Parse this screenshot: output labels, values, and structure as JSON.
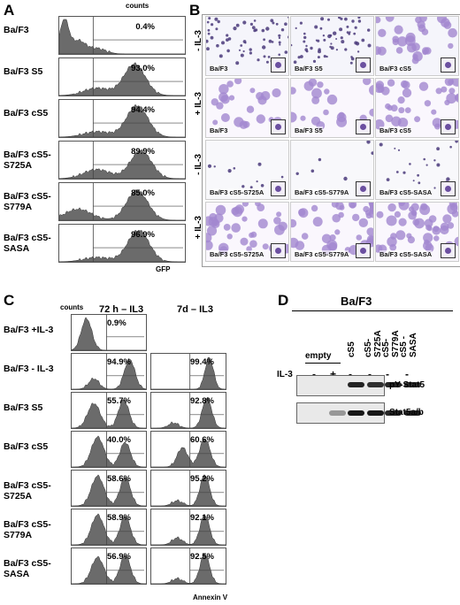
{
  "panels": {
    "A": "A",
    "B": "B",
    "C": "C",
    "D": "D"
  },
  "panel_a": {
    "y_axis": "counts",
    "x_axis": "GFP",
    "rows": [
      {
        "label": "Ba/F3",
        "pct": "0.4%"
      },
      {
        "label": "Ba/F3 S5",
        "pct": "93.0%"
      },
      {
        "label": "Ba/F3 cS5",
        "pct": "94.4%"
      },
      {
        "label": "Ba/F3 cS5-\nS725A",
        "pct": "89.9%"
      },
      {
        "label": "Ba/F3 cS5-\nS779A",
        "pct": "85.0%"
      },
      {
        "label": "Ba/F3 cS5-\nSASA",
        "pct": "96.9%"
      }
    ]
  },
  "panel_b": {
    "row_labels": [
      "- IL-3",
      "+ IL-3",
      "- IL-3",
      "+ IL-3"
    ],
    "captions": [
      [
        "Ba/F3",
        "Ba/F3 S5",
        "Ba/F3 cS5"
      ],
      [
        "Ba/F3",
        "Ba/F3 S5",
        "Ba/F3 cS5"
      ],
      [
        "Ba/F3 cS5-S725A",
        "Ba/F3 cS5-S779A",
        "Ba/F3 cS5-SASA"
      ],
      [
        "Ba/F3 cS5-S725A",
        "Ba/F3 cS5-S779A",
        "Ba/F3 cS5-SASA"
      ]
    ]
  },
  "panel_c": {
    "y_axis": "counts",
    "x_axis": "Annexin V",
    "col_headers": [
      "72 h – IL3",
      "7d – IL3"
    ],
    "rows": [
      {
        "label": "Ba/F3 +IL-3",
        "p72": "0.9%",
        "p7": ""
      },
      {
        "label": "Ba/F3 - IL-3",
        "p72": "94.9%",
        "p7": "99.4%"
      },
      {
        "label": "Ba/F3 S5",
        "p72": "55.7%",
        "p7": "92.8%"
      },
      {
        "label": "Ba/F3 cS5",
        "p72": "40.0%",
        "p7": "60.6%"
      },
      {
        "label": "Ba/F3 cS5-\nS725A",
        "p72": "58.6%",
        "p7": "95.2%"
      },
      {
        "label": "Ba/F3 cS5-\nS779A",
        "p72": "58.9%",
        "p7": "92.1%"
      },
      {
        "label": "Ba/F3 cS5-\nSASA",
        "p72": "56.9%",
        "p7": "92.5%"
      }
    ]
  },
  "panel_d": {
    "title": "Ba/F3",
    "lane_labels": [
      "empty",
      "cS5",
      "cS5-S725A",
      "cS5-S779A",
      "cS5 -SASA"
    ],
    "il3_label": "IL-3",
    "il3_signs": [
      "-",
      "+",
      "-",
      "-",
      "-",
      "-"
    ],
    "bands": [
      "pY-Stat5",
      "Stat5a/b"
    ]
  },
  "colors": {
    "histogram": "#6b6b6b",
    "stain": "#7a55b0"
  }
}
